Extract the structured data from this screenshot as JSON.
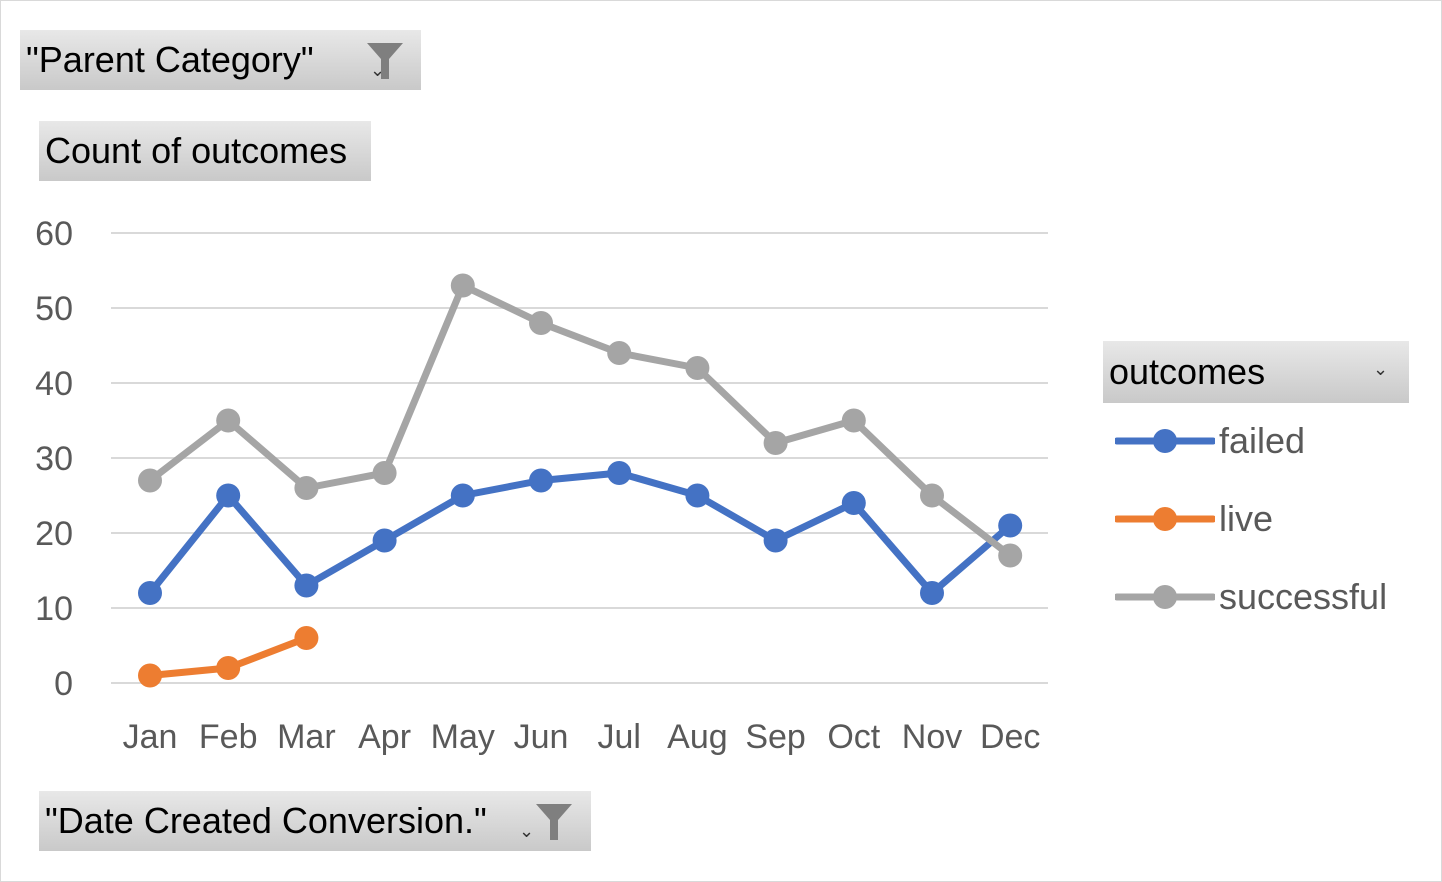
{
  "filters": {
    "report_filter_label": "\"Parent Category\"",
    "values_label": "Count of outcomes",
    "axis_label": "\"Date Created Conversion.\"",
    "legend_title": "outcomes"
  },
  "icons": {
    "filter": "funnel-icon",
    "dropdown": "chevron-down-icon"
  },
  "colors": {
    "failed": "#4472c4",
    "live": "#ed7d31",
    "successful": "#a5a5a5",
    "gridline": "#d9d9d9",
    "axis_text": "#595959"
  },
  "chart_data": {
    "type": "line",
    "categories": [
      "Jan",
      "Feb",
      "Mar",
      "Apr",
      "May",
      "Jun",
      "Jul",
      "Aug",
      "Sep",
      "Oct",
      "Nov",
      "Dec"
    ],
    "series": [
      {
        "name": "failed",
        "values": [
          12,
          25,
          13,
          19,
          25,
          27,
          28,
          25,
          19,
          24,
          12,
          21
        ]
      },
      {
        "name": "live",
        "values": [
          1,
          2,
          6,
          null,
          null,
          null,
          null,
          null,
          null,
          null,
          null,
          null
        ]
      },
      {
        "name": "successful",
        "values": [
          27,
          35,
          26,
          28,
          53,
          48,
          44,
          42,
          32,
          35,
          25,
          17
        ]
      }
    ],
    "ylim": [
      0,
      60
    ],
    "yticks": [
      0,
      10,
      20,
      30,
      40,
      50,
      60
    ],
    "grid": true,
    "legend": "right"
  }
}
